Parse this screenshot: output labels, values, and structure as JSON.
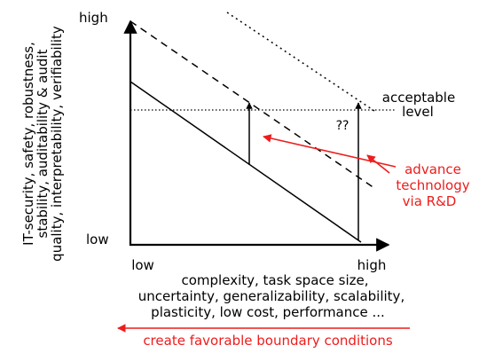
{
  "y_axis": {
    "high_label": "high",
    "low_label": "low",
    "title_lines": [
      "IT-security, safety, robustness,",
      "stability, auditability & audit",
      "quality, interpretability, verifiability"
    ]
  },
  "x_axis": {
    "low_label": "low",
    "high_label": "high",
    "title_lines": [
      "complexity, task space size,",
      "uncertainty, generalizability, scalability,",
      "plasticity, low cost, performance ..."
    ]
  },
  "acceptable_level_lines": [
    "acceptable",
    "level"
  ],
  "question_mark": "??",
  "advance_technology_lines": [
    "advance",
    "technology",
    "via R&D"
  ],
  "boundary_conditions": "create favorable boundary conditions",
  "colors": {
    "ink": "#000000",
    "accent": "#ee1c1c"
  }
}
